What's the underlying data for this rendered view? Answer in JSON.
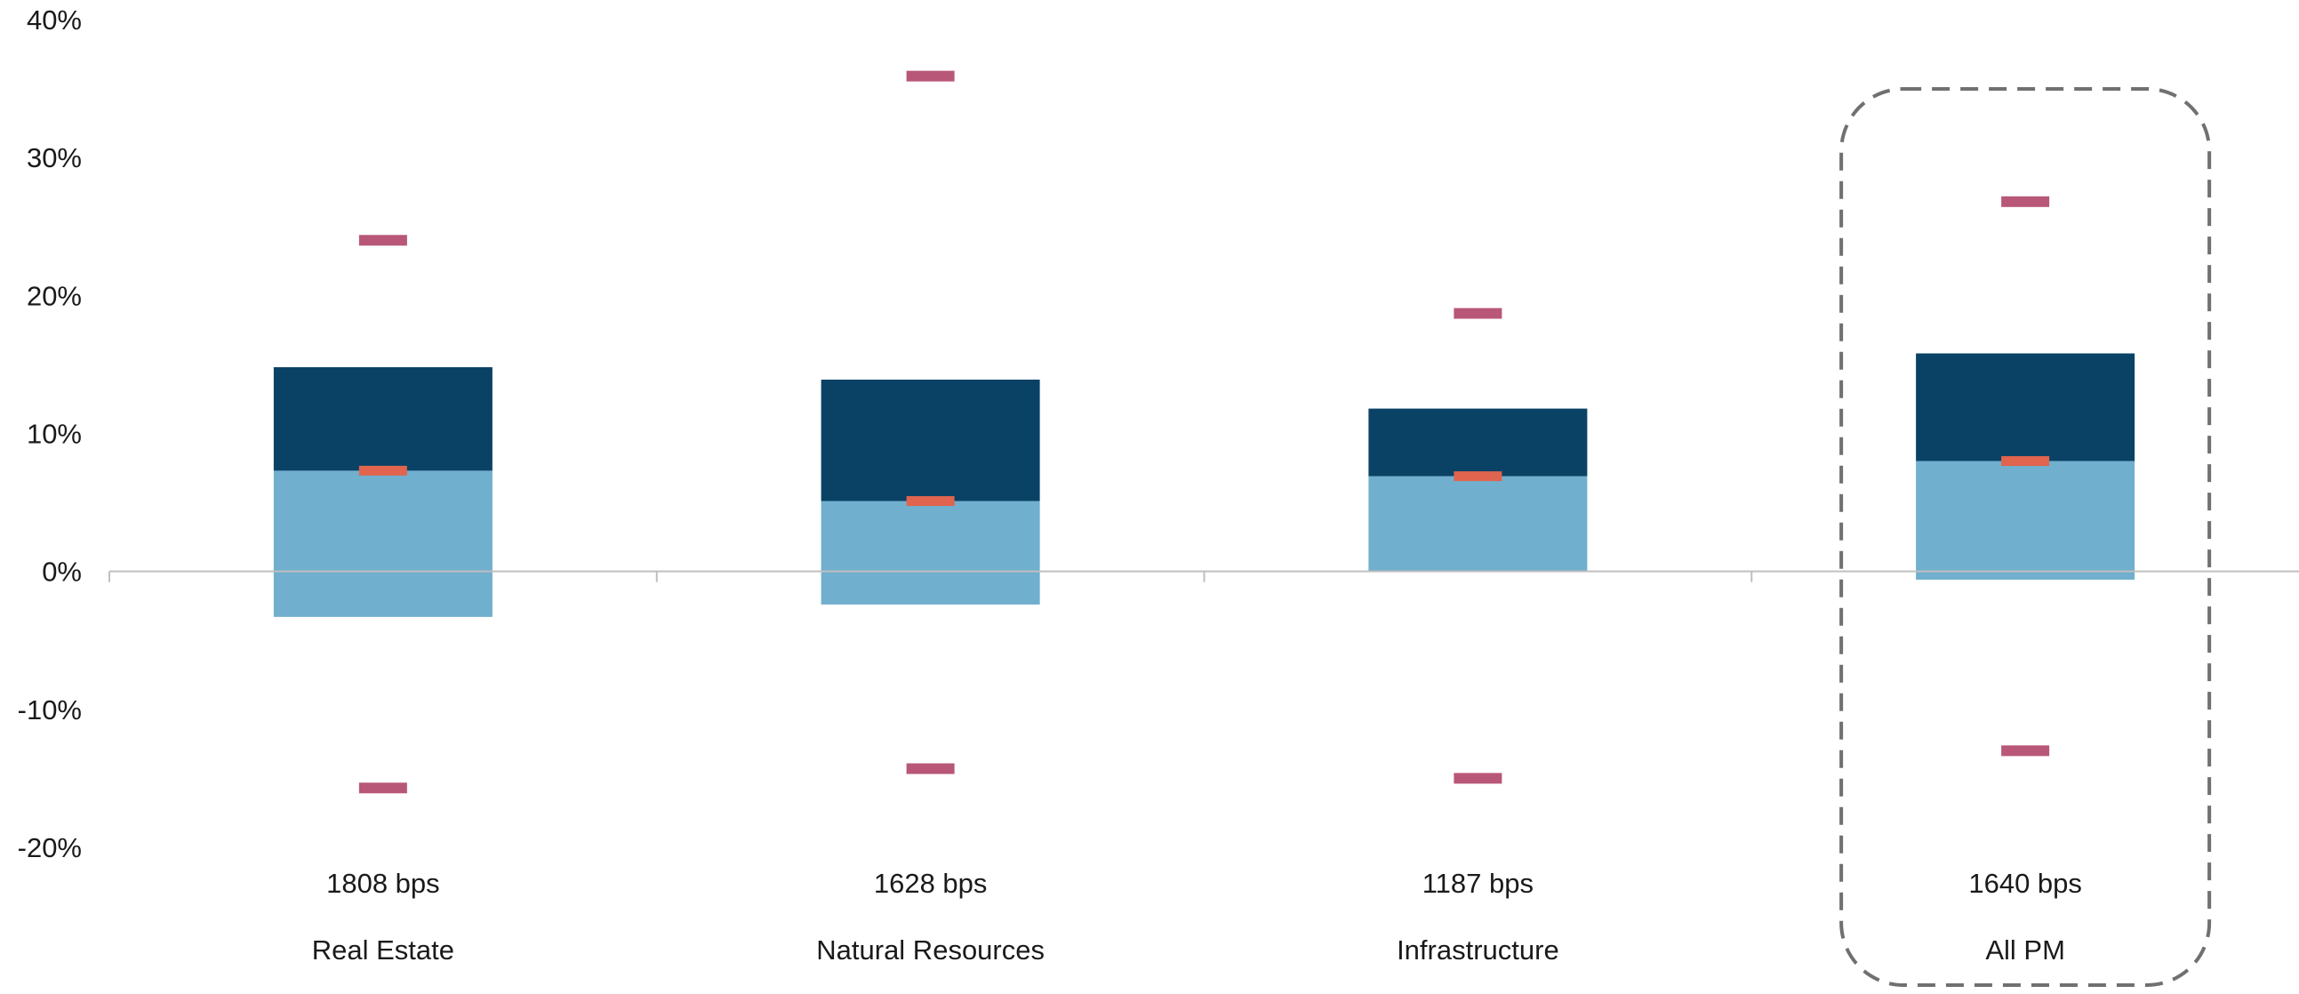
{
  "chart_data": {
    "type": "bar",
    "categories": [
      "Real Estate",
      "Natural Resources",
      "Infrastructure",
      "All PM"
    ],
    "spread_labels": [
      "1808 bps",
      "1628 bps",
      "1187 bps",
      "1640 bps"
    ],
    "series": [
      {
        "values": [
          [
            -3.3,
            7.3
          ],
          [
            -2.4,
            5.1
          ],
          [
            0.0,
            6.9
          ],
          [
            -0.6,
            8.0
          ]
        ]
      },
      {
        "values": [
          [
            7.3,
            14.8
          ],
          [
            5.1,
            13.9
          ],
          [
            6.9,
            11.8
          ],
          [
            8.0,
            15.8
          ]
        ]
      }
    ],
    "medians": [
      7.3,
      5.1,
      6.9,
      8.0
    ],
    "extremes_high": [
      24.0,
      35.9,
      18.7,
      26.8
    ],
    "extremes_low": [
      -15.7,
      -14.3,
      -15.0,
      -13.0
    ],
    "ylim": [
      -20,
      40
    ],
    "yticks": [
      "40%",
      "30%",
      "20%",
      "10%",
      "0%",
      "-10%",
      "-20%"
    ],
    "highlighted_category": "All PM",
    "colors": {
      "lower_box": "#70afcd",
      "upper_box": "#0a4266",
      "median": "#e0644e",
      "extreme": "#b85778",
      "axis": "#bfbfbf",
      "highlight_border": "#707070"
    }
  }
}
